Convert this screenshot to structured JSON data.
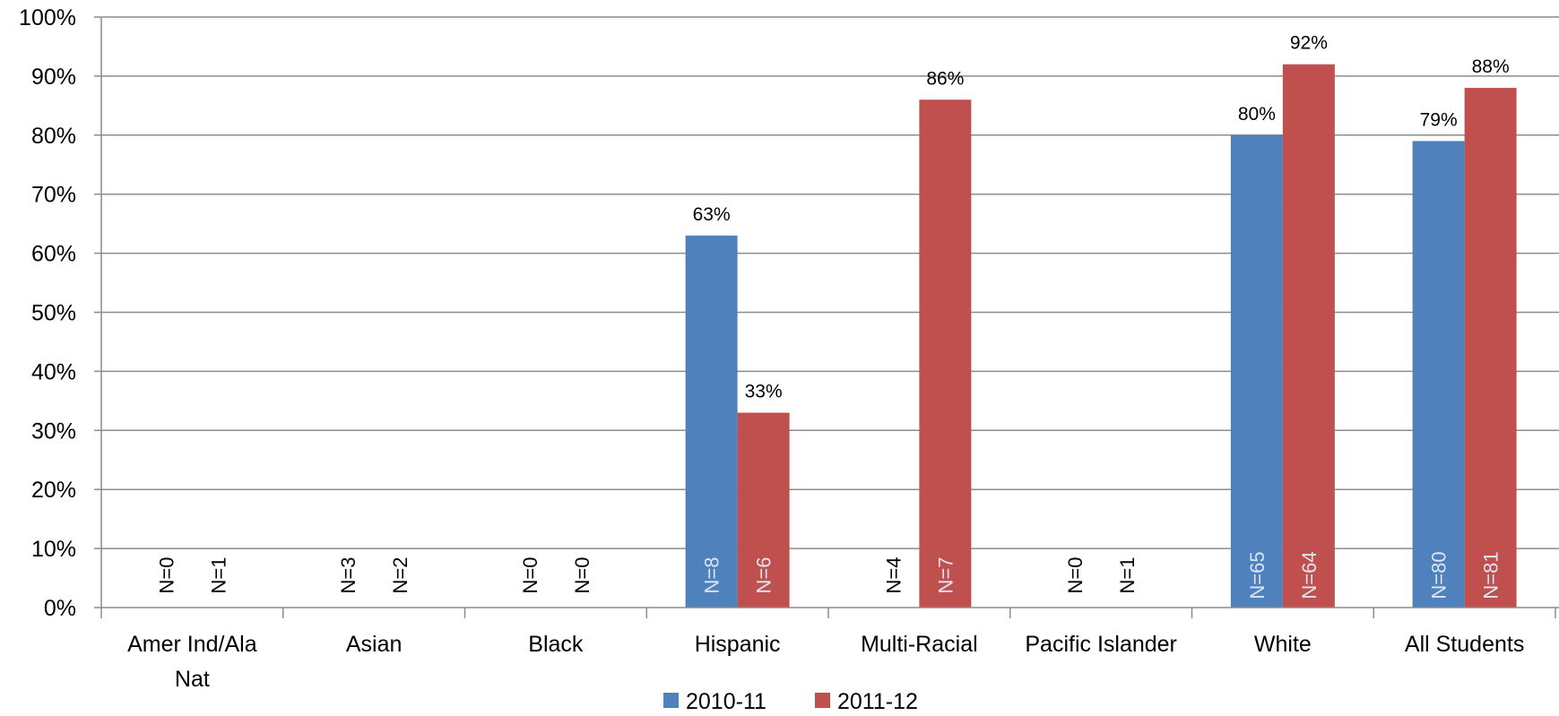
{
  "chart_data": {
    "type": "bar",
    "categories": [
      [
        "Amer Ind/Ala",
        "Nat"
      ],
      [
        "Asian"
      ],
      [
        "Black"
      ],
      [
        "Hispanic"
      ],
      [
        "Multi-Racial"
      ],
      [
        "Pacific Islander"
      ],
      [
        "White"
      ],
      [
        "All Students"
      ]
    ],
    "ylim": [
      0,
      100
    ],
    "yticks": [
      0,
      10,
      20,
      30,
      40,
      50,
      60,
      70,
      80,
      90,
      100
    ],
    "ytick_labels": [
      "0%",
      "10%",
      "20%",
      "30%",
      "40%",
      "50%",
      "60%",
      "70%",
      "80%",
      "90%",
      "100%"
    ],
    "grid": true,
    "legend_position": "bottom",
    "series": [
      {
        "name": "2010-11",
        "color": "#4f81bd",
        "values": [
          null,
          null,
          null,
          63,
          null,
          null,
          80,
          79
        ],
        "value_labels": [
          "",
          "",
          "",
          "63%",
          "",
          "",
          "80%",
          "79%"
        ],
        "n_labels": [
          "N=0",
          "N=3",
          "N=0",
          "N=8",
          "N=4",
          "N=0",
          "N=65",
          "N=80"
        ]
      },
      {
        "name": "2011-12",
        "color": "#c0504d",
        "values": [
          null,
          null,
          null,
          33,
          86,
          null,
          92,
          88
        ],
        "value_labels": [
          "",
          "",
          "",
          "33%",
          "86%",
          "",
          "92%",
          "88%"
        ],
        "n_labels": [
          "N=1",
          "N=2",
          "N=0",
          "N=6",
          "N=7",
          "N=1",
          "N=64",
          "N=81"
        ]
      }
    ]
  }
}
